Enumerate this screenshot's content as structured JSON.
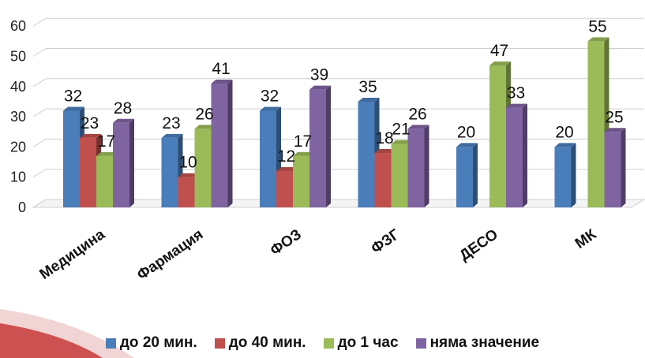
{
  "chart_data": {
    "type": "bar",
    "categories": [
      "Медицина",
      "Фармация",
      "ФОЗ",
      "ФЗГ",
      "ДЕСО",
      "МК"
    ],
    "series": [
      {
        "name": "до 20 мин.",
        "color": "#4a7ebb",
        "values": [
          32,
          23,
          32,
          35,
          20,
          20
        ]
      },
      {
        "name": "до 40 мин.",
        "color": "#c0504d",
        "values": [
          23,
          10,
          12,
          18,
          null,
          null
        ]
      },
      {
        "name": "до 1 час",
        "color": "#9bbb59",
        "values": [
          17,
          26,
          17,
          21,
          47,
          55
        ]
      },
      {
        "name": "няма значение",
        "color": "#8064a2",
        "values": [
          28,
          41,
          39,
          26,
          33,
          25
        ]
      }
    ],
    "ylim": [
      0,
      60
    ],
    "yticks": [
      0,
      10,
      20,
      30,
      40,
      50,
      60
    ],
    "grid": true,
    "legend_position": "bottom"
  }
}
